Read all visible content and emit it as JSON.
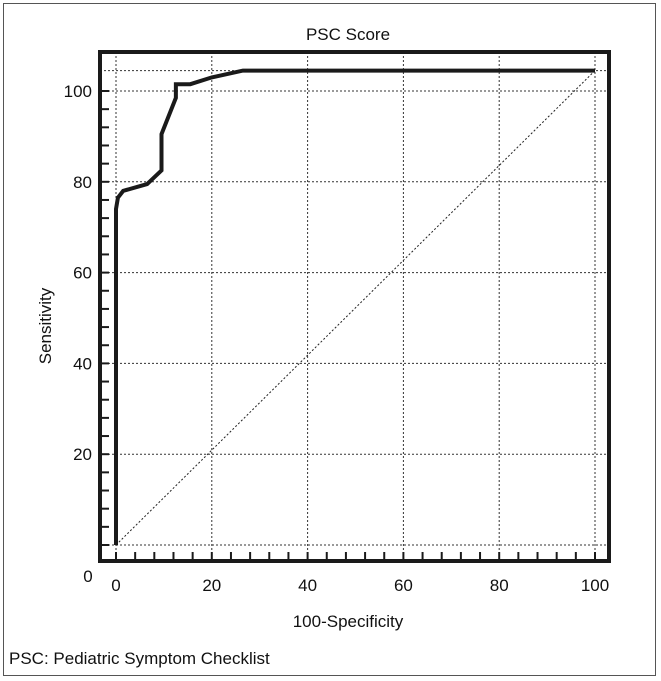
{
  "caption": "PSC: Pediatric Symptom Checklist",
  "chart_data": {
    "type": "line",
    "title": "PSC Score",
    "xlabel": "100-Specificity",
    "ylabel": "Sensitivity",
    "xlim": [
      0,
      100
    ],
    "ylim": [
      0,
      100
    ],
    "x_ticks": [
      0,
      20,
      40,
      60,
      80,
      100
    ],
    "y_ticks": [
      0,
      20,
      40,
      60,
      80,
      100
    ],
    "grid": true,
    "series": [
      {
        "line_style": "solid",
        "x": [
          0,
          0,
          0.4,
          1.5,
          6.5,
          9.5,
          9.5,
          12.5,
          12.5,
          15.5,
          20,
          26.5,
          100
        ],
        "y": [
          0,
          74,
          76.5,
          78,
          79.5,
          82.5,
          90.5,
          98.5,
          101.5,
          101.5,
          103,
          104.5,
          104.5
        ]
      },
      {
        "line_style": "dotted",
        "x": [
          0,
          100
        ],
        "y": [
          0,
          104.5
        ]
      }
    ]
  }
}
